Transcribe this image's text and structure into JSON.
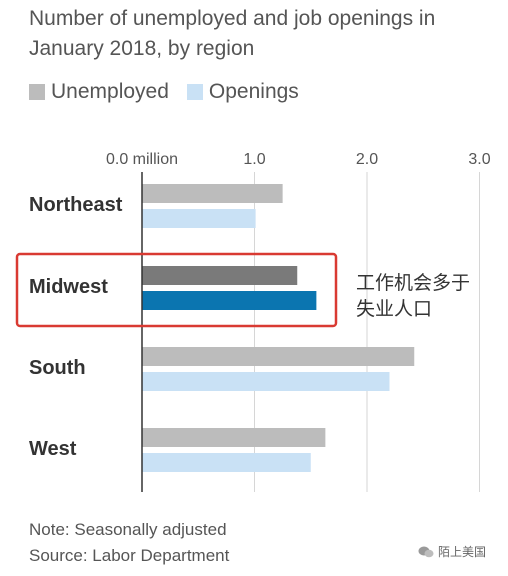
{
  "title": "Number of unemployed and job openings in January 2018, by region",
  "annotation": "工作机会多于失业人口",
  "annotation_lines": [
    "工作机会多于",
    "失业人口"
  ],
  "note": "Note: Seasonally adjusted",
  "source": "Source: Labor Department",
  "watermark": "陌上美国",
  "colors": {
    "unemployed": "#bcbcbc",
    "openings": "#c9e1f5",
    "unemployed_highlight": "#7a7a7a",
    "openings_highlight": "#0b75b0",
    "highlight_box": "#d93a32",
    "axis": "#333333",
    "grid": "#d6d6d6"
  },
  "chart_data": {
    "type": "bar",
    "orientation": "horizontal",
    "categories": [
      "Northeast",
      "Midwest",
      "South",
      "West"
    ],
    "series": [
      {
        "name": "Unemployed",
        "values": [
          1.25,
          1.38,
          2.42,
          1.63
        ]
      },
      {
        "name": "Openings",
        "values": [
          1.01,
          1.55,
          2.2,
          1.5
        ]
      }
    ],
    "highlight_category": "Midwest",
    "tick_values": [
      0,
      1,
      2,
      3
    ],
    "tick_labels": [
      "0.0 million",
      "1.0",
      "2.0",
      "3.0"
    ],
    "xlim": [
      0,
      3
    ],
    "grid": true,
    "legend_position": "top-left"
  }
}
